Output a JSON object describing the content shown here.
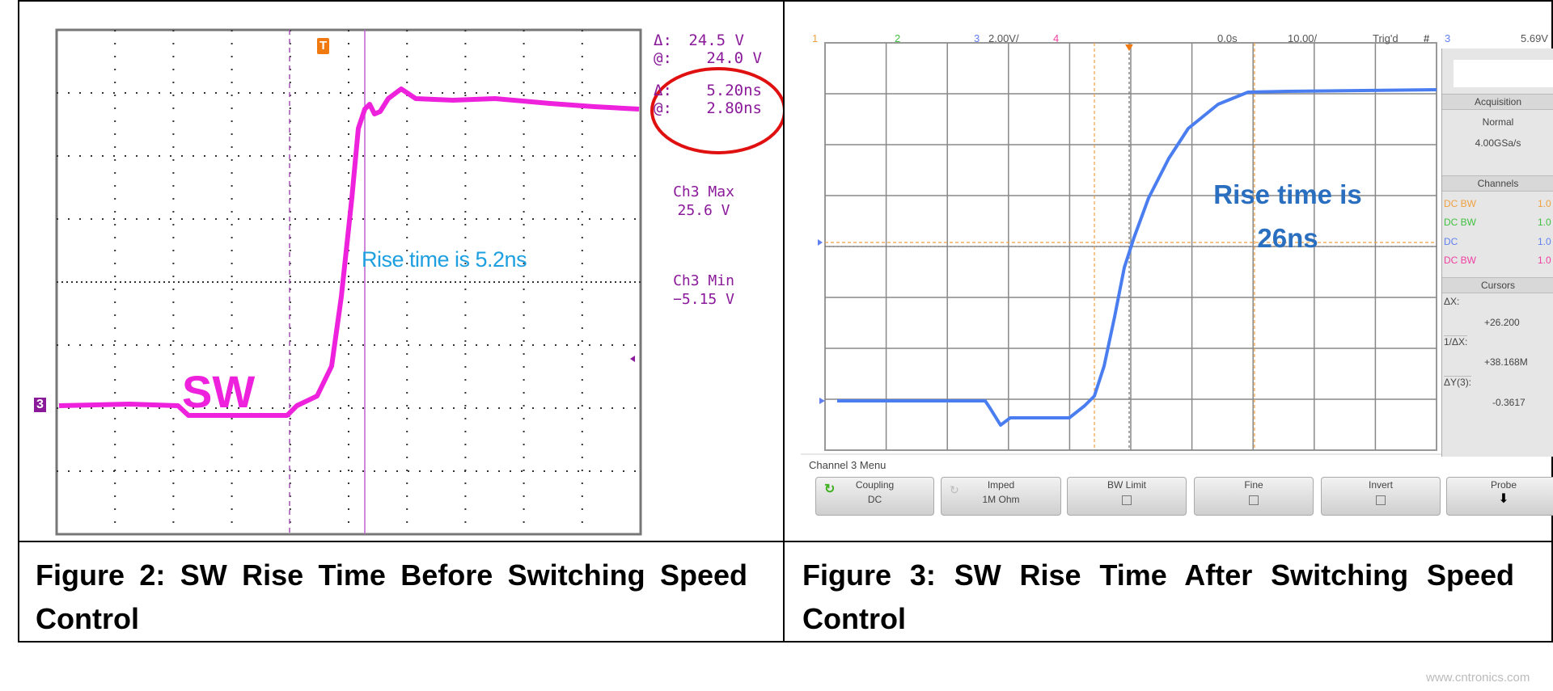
{
  "figure2": {
    "caption": "Figure 2: SW Rise Time Before Switching Speed Control",
    "annotation": "Rise time is 5.2ns",
    "trace_label": "SW",
    "channel_marker": "3",
    "trigger_marker": "T",
    "measurements": [
      {
        "label": "Δ:",
        "value": "24.5 V"
      },
      {
        "label": "@:",
        "value": "24.0 V"
      },
      {
        "label": "Δ:",
        "value": "5.20ns"
      },
      {
        "label": "@:",
        "value": "2.80ns"
      }
    ],
    "ch3_max_label": "Ch3 Max",
    "ch3_max_value": "25.6 V",
    "ch3_min_label": "Ch3 Min",
    "ch3_min_value": "−5.15 V",
    "colors": {
      "trace": "#ee22dd",
      "text": "#8a1a9a",
      "annotation": "#1ea0e0",
      "highlight": "#e01010"
    }
  },
  "figure3": {
    "caption": "Figure 3: SW Rise Time After Switching Speed Control",
    "annotation_line1": "Rise time is",
    "annotation_line2": "26ns",
    "header": {
      "ch1": "1",
      "ch2": "2",
      "ch3": "3",
      "ch3_scale": "2.00V/",
      "ch4": "4",
      "time_offset": "0.0s",
      "time_scale": "10.00/",
      "status": "Trig'd",
      "trig_symbol": "#",
      "trig_channel": "3",
      "trig_level": "5.69V"
    },
    "panel": {
      "acquisition_title": "Acquisition",
      "acquisition_mode": "Normal",
      "sample_rate": "4.00GSa/s",
      "channels_title": "Channels",
      "channels": [
        {
          "coupling": "DC BW",
          "value": "1.0",
          "color": "#f0a040"
        },
        {
          "coupling": "DC BW",
          "value": "1.0",
          "color": "#40c040"
        },
        {
          "coupling": "DC",
          "value": "1.0",
          "color": "#6080f0"
        },
        {
          "coupling": "DC BW",
          "value": "1.0",
          "color": "#f040a0"
        }
      ],
      "cursors_title": "Cursors",
      "dx_label": "ΔX:",
      "dx_value": "+26.200",
      "inv_dx_label": "1/ΔX:",
      "inv_dx_value": "+38.168M",
      "dy_label": "ΔY(3):",
      "dy_value": "-0.3617"
    },
    "menu_title": "Channel 3 Menu",
    "softkeys": [
      {
        "label": "Coupling",
        "value": "DC"
      },
      {
        "label": "Imped",
        "value": "1M Ohm"
      },
      {
        "label": "BW Limit",
        "value": ""
      },
      {
        "label": "Fine",
        "value": ""
      },
      {
        "label": "Invert",
        "value": ""
      },
      {
        "label": "Probe",
        "value": ""
      }
    ],
    "colors": {
      "trace": "#4a7ef0",
      "annotation": "#2a6ebf",
      "cursor": "#f0a040"
    }
  },
  "watermark": "www.cntronics.com"
}
